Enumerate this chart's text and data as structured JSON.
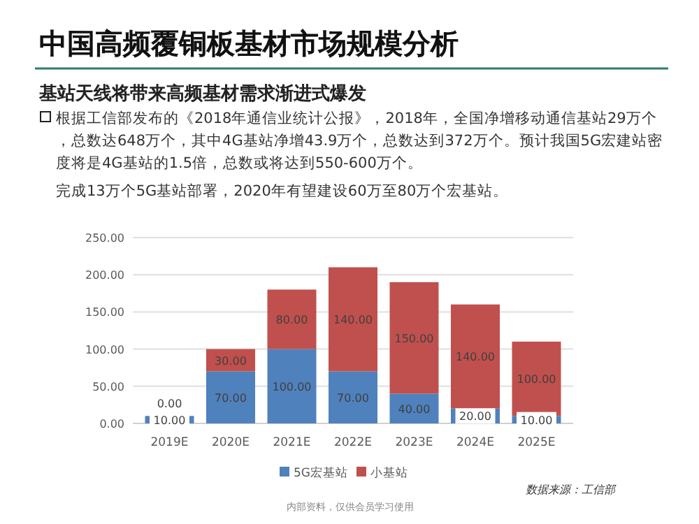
{
  "chart_data": {
    "type": "bar",
    "stacked": true,
    "title": "中国高频覆铜板基材市场规模分析",
    "subtitle": "基站天线将带来高频基材需求渐进式爆发",
    "annotations": [
      "根据工信部发布的《2018年通信业统计公报》，2018年，全国净增移动通信基站29万个，总数达648万个，其中4G基站净增43.9万个，总数达到372万个。预计我国5G宏建站密度将是4G基站的1.5倍，总数或将达到550-600万个。",
      "完成13万个5G基站部署，2020年有望建设60万至80万个宏基站。",
      "数据来源：工信部",
      "内部资料，仅供会员学习使用"
    ],
    "categories": [
      "2019E",
      "2020E",
      "2021E",
      "2022E",
      "2023E",
      "2024E",
      "2025E"
    ],
    "series": [
      {
        "name": "5G宏基站",
        "color": "#4f81bd",
        "values": [
          10,
          70,
          100,
          70,
          40,
          20,
          10
        ],
        "value_labels": [
          "10.00",
          "70.00",
          "100.00",
          "70.00",
          "40.00",
          "20.00",
          "10.00"
        ]
      },
      {
        "name": "小基站",
        "color": "#c0504d",
        "values": [
          0,
          30,
          80,
          140,
          150,
          140,
          100
        ],
        "value_labels": [
          "0.00",
          "30.00",
          "80.00",
          "140.00",
          "150.00",
          "140.00",
          "100.00"
        ]
      }
    ],
    "ylim": [
      0,
      250
    ],
    "yticks": [
      {
        "value": 0,
        "label": "0.00"
      },
      {
        "value": 50,
        "label": "50.00"
      },
      {
        "value": 100,
        "label": "100.00"
      },
      {
        "value": 150,
        "label": "150.00"
      },
      {
        "value": 200,
        "label": "200.00"
      },
      {
        "value": 250,
        "label": "250.00"
      }
    ],
    "grid": "y",
    "legend": "bottom"
  }
}
